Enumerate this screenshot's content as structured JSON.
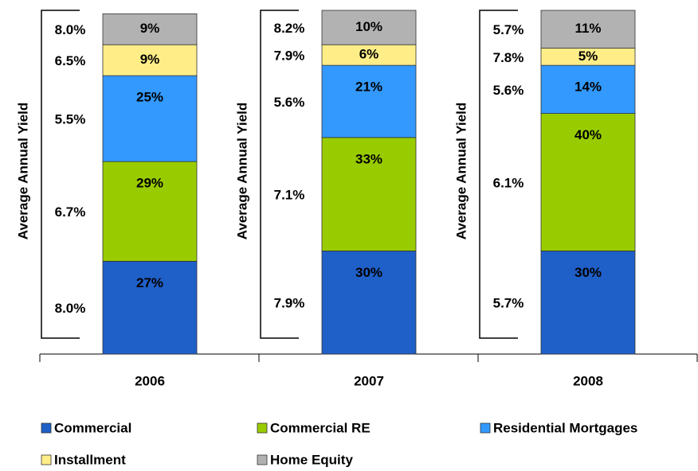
{
  "chart_data": {
    "type": "stacked_bar",
    "categories": [
      "2006",
      "2007",
      "2008"
    ],
    "yield_axis_label": "Average Annual Yield",
    "series": [
      {
        "name": "Commercial",
        "color": "#1f5fc8",
        "values": [
          27,
          30,
          30
        ],
        "value_labels": [
          "27%",
          "30%",
          "30%"
        ],
        "yield_labels": [
          "8.0%",
          "7.9%",
          "5.7%"
        ]
      },
      {
        "name": "Commercial RE",
        "color": "#99cc00",
        "values": [
          29,
          33,
          40
        ],
        "value_labels": [
          "29%",
          "33%",
          "40%"
        ],
        "yield_labels": [
          "6.7%",
          "7.1%",
          "6.1%"
        ]
      },
      {
        "name": "Residential Mortgages",
        "color": "#3399ff",
        "values": [
          25,
          21,
          14
        ],
        "value_labels": [
          "25%",
          "21%",
          "14%"
        ],
        "yield_labels": [
          "5.5%",
          "5.6%",
          "5.6%"
        ]
      },
      {
        "name": "Installment",
        "color": "#ffee88",
        "values": [
          9,
          6,
          5
        ],
        "value_labels": [
          "9%",
          "6%",
          "5%"
        ],
        "yield_labels": [
          "6.5%",
          "7.9%",
          "7.8%"
        ]
      },
      {
        "name": "Home Equity",
        "color": "#b2b2b2",
        "values": [
          9,
          10,
          11
        ],
        "value_labels": [
          "9%",
          "10%",
          "11%"
        ],
        "yield_labels": [
          "8.0%",
          "8.2%",
          "5.7%"
        ]
      }
    ]
  }
}
